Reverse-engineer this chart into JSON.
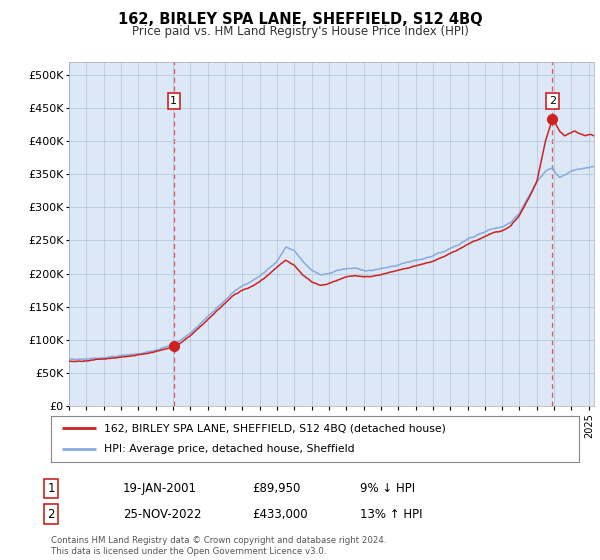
{
  "title": "162, BIRLEY SPA LANE, SHEFFIELD, S12 4BQ",
  "subtitle": "Price paid vs. HM Land Registry's House Price Index (HPI)",
  "background_color": "#f0f4f8",
  "plot_bg_color": "#dce8f5",
  "ylim": [
    0,
    520000
  ],
  "yticks": [
    0,
    50000,
    100000,
    150000,
    200000,
    250000,
    300000,
    350000,
    400000,
    450000,
    500000
  ],
  "ytick_labels": [
    "£0",
    "£50K",
    "£100K",
    "£150K",
    "£200K",
    "£250K",
    "£300K",
    "£350K",
    "£400K",
    "£450K",
    "£500K"
  ],
  "xlim_start": 1995.0,
  "xlim_end": 2025.3,
  "xtick_years": [
    1995,
    1996,
    1997,
    1998,
    1999,
    2000,
    2001,
    2002,
    2003,
    2004,
    2005,
    2006,
    2007,
    2008,
    2009,
    2010,
    2011,
    2012,
    2013,
    2014,
    2015,
    2016,
    2017,
    2018,
    2019,
    2020,
    2021,
    2022,
    2023,
    2024,
    2025
  ],
  "sale1_x": 2001.05,
  "sale1_y": 89950,
  "sale1_label": "1",
  "sale2_x": 2022.9,
  "sale2_y": 433000,
  "sale2_label": "2",
  "red_line_color": "#cc2222",
  "blue_line_color": "#88aadd",
  "marker_color": "#cc2222",
  "vline_color": "#dd5555",
  "box_edge_color": "#cc2222",
  "grid_color": "#b0c4d8",
  "legend_label_red": "162, BIRLEY SPA LANE, SHEFFIELD, S12 4BQ (detached house)",
  "legend_label_blue": "HPI: Average price, detached house, Sheffield",
  "annotation1_date": "19-JAN-2001",
  "annotation1_price": "£89,950",
  "annotation1_hpi": "9% ↓ HPI",
  "annotation2_date": "25-NOV-2022",
  "annotation2_price": "£433,000",
  "annotation2_hpi": "13% ↑ HPI",
  "footer": "Contains HM Land Registry data © Crown copyright and database right 2024.\nThis data is licensed under the Open Government Licence v3.0."
}
